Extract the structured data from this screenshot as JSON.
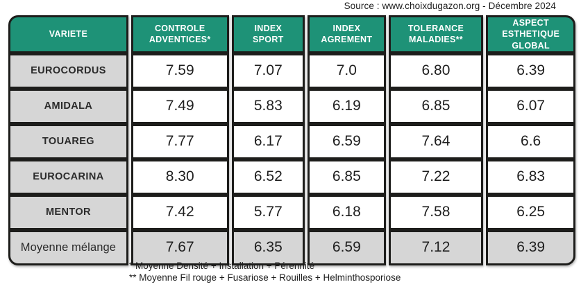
{
  "source_caption": "Source : www.choixdugazon.org - Décembre 2024",
  "table": {
    "columns": [
      "VARIETE",
      "CONTROLE\nADVENTICES*",
      "INDEX\nSPORT",
      "INDEX\nAGREMENT",
      "TOLERANCE\nMALADIES**",
      "ASPECT\nESTHETIQUE\nGLOBAL"
    ],
    "rows": [
      {
        "variety": "EUROCORDUS",
        "values": [
          "7.59",
          "7.07",
          "7.0",
          "6.80",
          "6.39"
        ],
        "summary": false
      },
      {
        "variety": "AMIDALA",
        "values": [
          "7.49",
          "5.83",
          "6.19",
          "6.85",
          "6.07"
        ],
        "summary": false
      },
      {
        "variety": "TOUAREG",
        "values": [
          "7.77",
          "6.17",
          "6.59",
          "7.64",
          "6.6"
        ],
        "summary": false
      },
      {
        "variety": "EUROCARINA",
        "values": [
          "8.30",
          "6.52",
          "6.85",
          "7.22",
          "6.83"
        ],
        "summary": false
      },
      {
        "variety": "MENTOR",
        "values": [
          "7.42",
          "5.77",
          "6.18",
          "7.58",
          "6.25"
        ],
        "summary": false
      },
      {
        "variety": "Moyenne mélange",
        "values": [
          "7.67",
          "6.35",
          "6.59",
          "7.12",
          "6.39"
        ],
        "summary": true
      }
    ]
  },
  "footnotes": [
    "* Moyenne Densité + Installation + Pérennité",
    "** Moyenne Fil rouge + Fusariose + Rouilles + Helminthosporiose"
  ],
  "colors": {
    "header_bg": "#1e9277",
    "header_text": "#ffffff",
    "row_label_bg": "#d6d6d6",
    "border": "#1d1d1b"
  },
  "chart_data": {
    "type": "table",
    "title": "",
    "source": "Source : www.choixdugazon.org - Décembre 2024",
    "columns": [
      "VARIETE",
      "CONTROLE ADVENTICES*",
      "INDEX SPORT",
      "INDEX AGREMENT",
      "TOLERANCE MALADIES**",
      "ASPECT ESTHETIQUE GLOBAL"
    ],
    "rows": [
      [
        "EUROCORDUS",
        7.59,
        7.07,
        7.0,
        6.8,
        6.39
      ],
      [
        "AMIDALA",
        7.49,
        5.83,
        6.19,
        6.85,
        6.07
      ],
      [
        "TOUAREG",
        7.77,
        6.17,
        6.59,
        7.64,
        6.6
      ],
      [
        "EUROCARINA",
        8.3,
        6.52,
        6.85,
        7.22,
        6.83
      ],
      [
        "MENTOR",
        7.42,
        5.77,
        6.18,
        7.58,
        6.25
      ],
      [
        "Moyenne mélange",
        7.67,
        6.35,
        6.59,
        7.12,
        6.39
      ]
    ],
    "footnotes": [
      "* Moyenne Densité + Installation + Pérennité",
      "** Moyenne Fil rouge + Fusariose + Rouilles + Helminthosporiose"
    ]
  }
}
